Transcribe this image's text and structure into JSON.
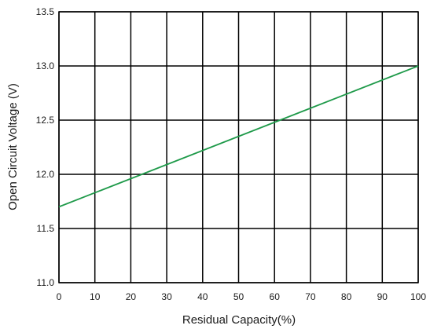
{
  "colors": {
    "grid": "#000000",
    "line": "#1f9a4a",
    "background": "#ffffff"
  },
  "chart_data": {
    "type": "line",
    "xlabel": "Residual Capacity(%)",
    "ylabel": "Open Circuit Voltage (V)",
    "xlim": [
      0,
      100
    ],
    "ylim": [
      11.0,
      13.5
    ],
    "xticks": [
      0,
      10,
      20,
      30,
      40,
      50,
      60,
      70,
      80,
      90,
      100
    ],
    "yticks": [
      11.0,
      11.5,
      12.0,
      12.5,
      13.0,
      13.5
    ],
    "ytick_labels": [
      "11.0",
      "11.5",
      "12.0",
      "12.5",
      "13.0",
      "13.5"
    ],
    "grid": true,
    "series": [
      {
        "x": [
          0,
          100
        ],
        "y": [
          11.7,
          13.0
        ]
      }
    ]
  }
}
